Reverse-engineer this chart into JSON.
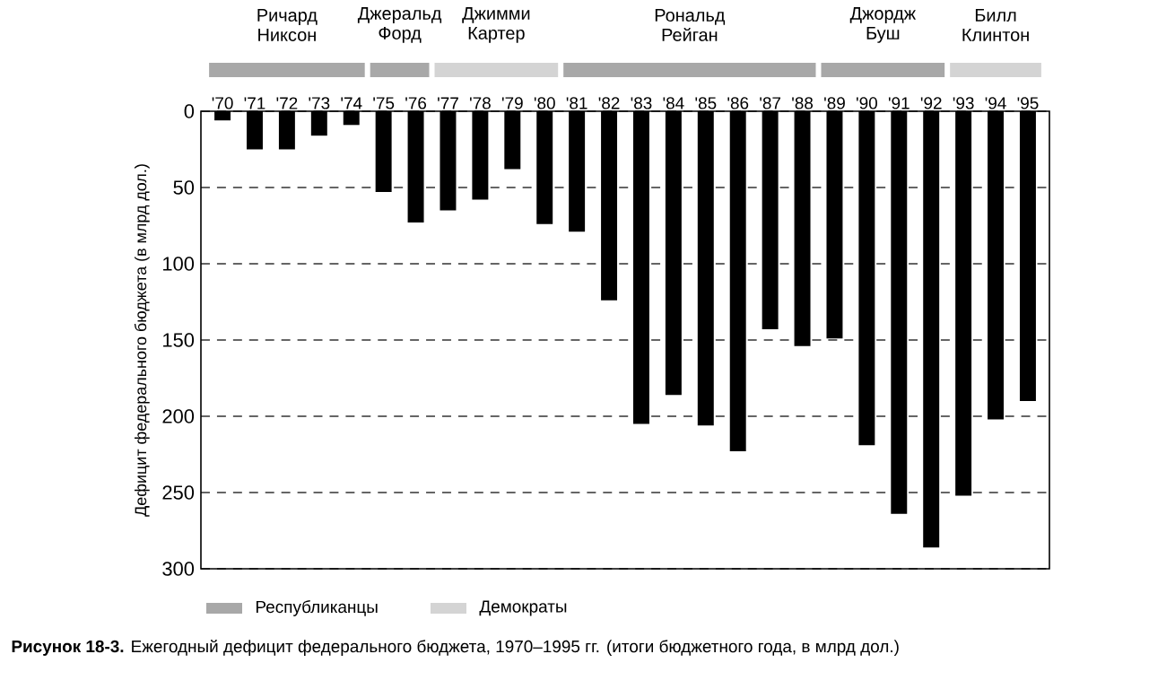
{
  "chart_data": {
    "type": "bar",
    "categories": [
      "'70",
      "'71",
      "'72",
      "'73",
      "'74",
      "'75",
      "'76",
      "'77",
      "'78",
      "'79",
      "'80",
      "'81",
      "'82",
      "'83",
      "'84",
      "'85",
      "'86",
      "'87",
      "'88",
      "'89",
      "'90",
      "'91",
      "'92",
      "'93",
      "'94",
      "'95"
    ],
    "values": [
      6,
      25,
      25,
      16,
      9,
      53,
      73,
      65,
      58,
      38,
      74,
      79,
      124,
      205,
      186,
      206,
      223,
      143,
      154,
      149,
      219,
      264,
      286,
      252,
      202,
      190
    ],
    "color": "#000000",
    "ylabel": "Дефицит федерального бюджета (в млрд дол.)",
    "ylim": [
      300,
      0
    ],
    "yticks": [
      0,
      50,
      100,
      150,
      200,
      250,
      300
    ],
    "grid": "y",
    "line_style": "dashed",
    "annotations": [
      "Ричард Никсон",
      "Джеральд Форд",
      "Джимми Картер",
      "Рональд Рейган",
      "Джордж Буш",
      "Билл Клинтон",
      "Республиканцы",
      "Демократы",
      "**Рисунок 18-3.** Ежегодный дефицит федерального бюджета, 1970–1995 гг. (итоги бюджетного года, в млрд дол.)"
    ]
  }
}
